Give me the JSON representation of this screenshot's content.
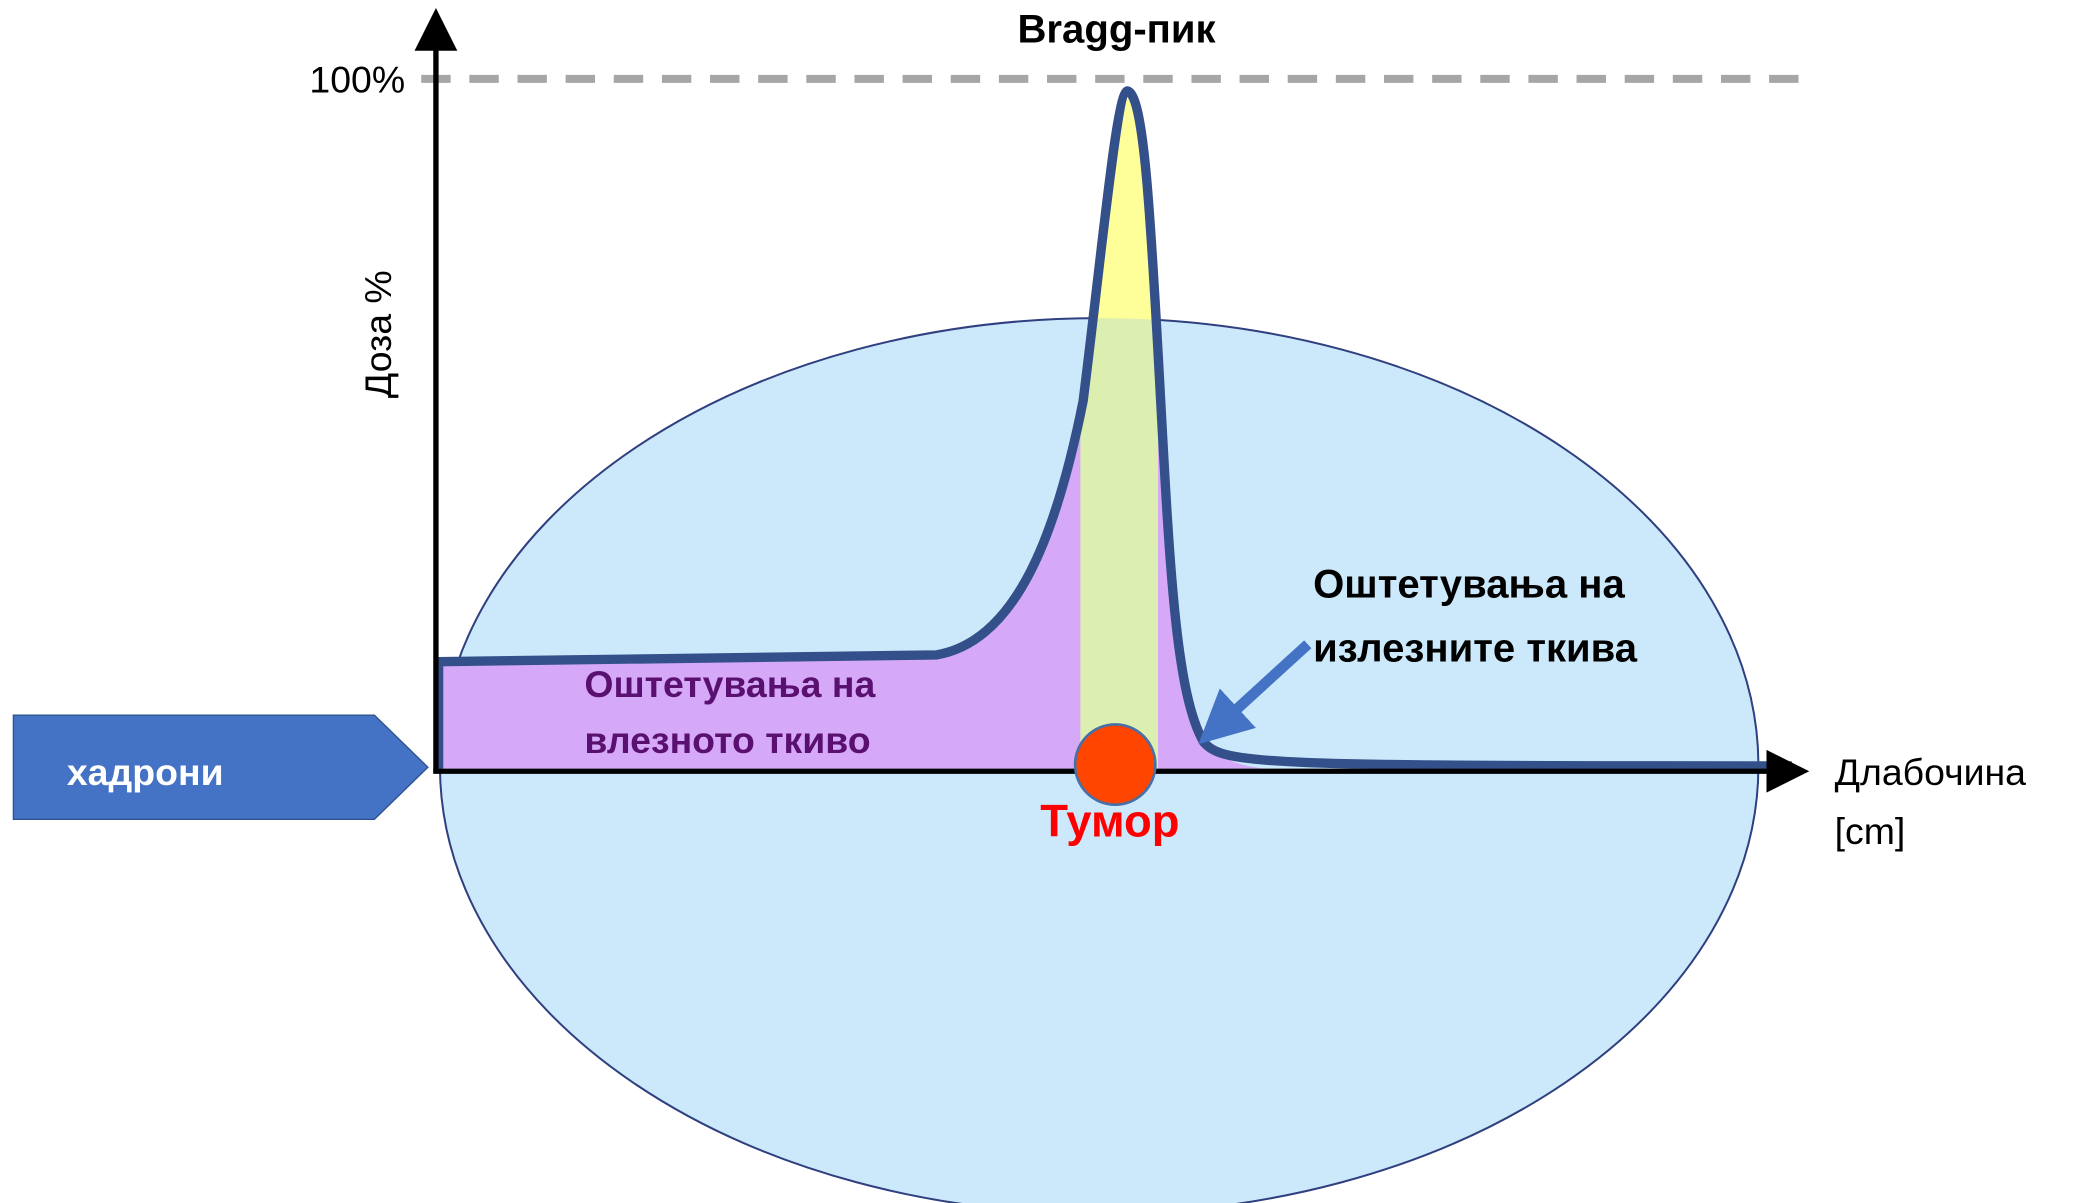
{
  "title": "Bragg-пик",
  "y_axis": {
    "label": "Доза %",
    "max_label": "100%"
  },
  "x_axis": {
    "label_lines": [
      "Длабочина",
      "[cm]"
    ]
  },
  "beam": {
    "label": "хадрони"
  },
  "tumor": {
    "label": "Тумор"
  },
  "entrance_damage": {
    "lines": [
      "Оштетувања на",
      "влезното ткиво"
    ]
  },
  "exit_damage": {
    "lines": [
      "Оштетувања на",
      "излезните ткива"
    ]
  }
}
